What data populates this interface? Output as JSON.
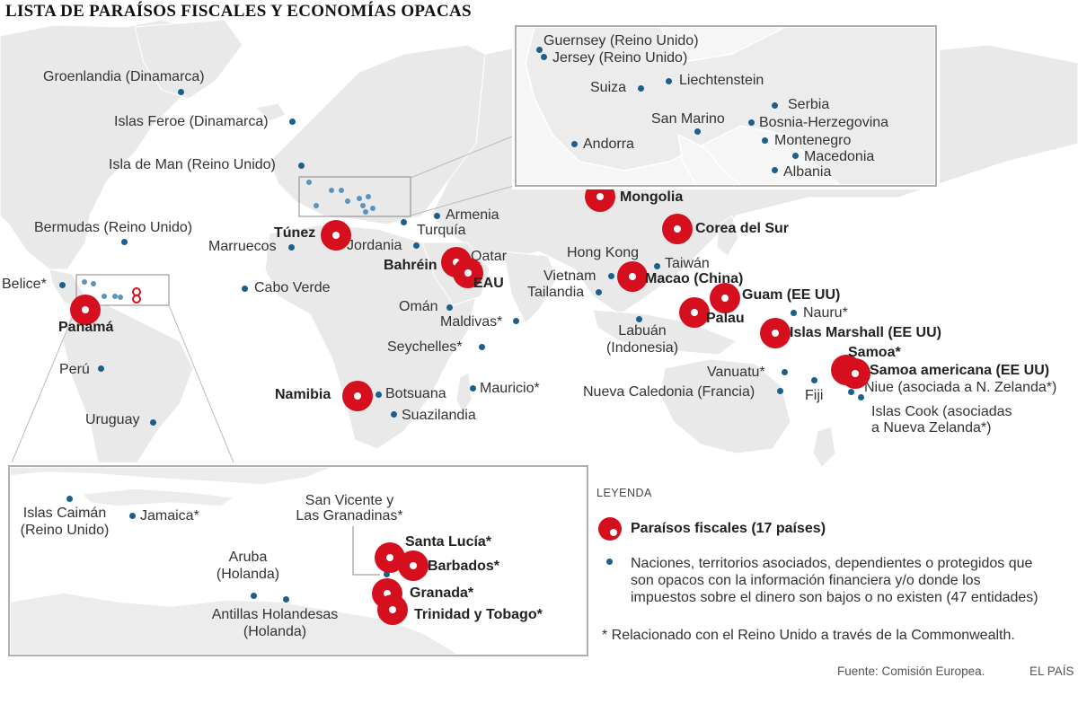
{
  "title": "LISTA DE PARAÍSOS FISCALES Y ECONOMÍAS OPACAS",
  "world_labels": {
    "groenlandia": "Groenlandia (Dinamarca)",
    "islas_feroe": "Islas Feroe (Dinamarca)",
    "isla_de_man": "Isla de Man (Reino Unido)",
    "bermudas": "Bermudas (Reino Unido)",
    "marruecos": "Marruecos",
    "jordania": "Jordania",
    "turquia": "Turquía",
    "armenia": "Armenia",
    "qatar": "Qatar",
    "cabo_verde": "Cabo Verde",
    "belice": "Belice*",
    "oman": "Omán",
    "maldivas": "Maldivas*",
    "seychelles": "Seychelles*",
    "peru": "Perú",
    "uruguay": "Uruguay",
    "botsuana": "Botsuana",
    "suazilandia": "Suazilandia",
    "mauricio": "Mauricio*",
    "hong_kong": "Hong Kong",
    "taiwan": "Taiwán",
    "vietnam": "Vietnam",
    "tailandia": "Tailandia",
    "labuan_1": "Labuán",
    "labuan_2": "(Indonesia)",
    "nauru": "Nauru*",
    "vanuatu": "Vanuatu*",
    "nueva_caledonia": "Nueva Caledonia (Francia)",
    "fiji": "Fiji",
    "niue": "Niue (asociada a N. Zelanda*)",
    "islas_cook_1": "Islas Cook (asociadas",
    "islas_cook_2": "a Nueva Zelanda*)"
  },
  "havens": {
    "panama": "Panamá",
    "tunez": "Túnez",
    "bahrein": "Bahréin",
    "eau": "EAU",
    "namibia": "Namibia",
    "mongolia": "Mongolia",
    "corea": "Corea del Sur",
    "macao": "Macao (China)",
    "guam": "Guam (EE UU)",
    "palau": "Palau",
    "marshall": "Islas Marshall (EE UU)",
    "samoa": "Samoa*",
    "samoa_americana": "Samoa americana (EE UU)"
  },
  "europe_inset": {
    "guernsey": "Guernsey (Reino Unido)",
    "jersey": "Jersey (Reino Unido)",
    "suiza": "Suiza",
    "liechtenstein": "Liechtenstein",
    "serbia": "Serbia",
    "san_marino": "San Marino",
    "bosnia": "Bosnia-Herzegovina",
    "andorra": "Andorra",
    "montenegro": "Montenegro",
    "macedonia": "Macedonia",
    "albania": "Albania"
  },
  "caribbean_inset": {
    "islas_caiman_1": "Islas Caimán",
    "islas_caiman_2": "(Reino Unido)",
    "jamaica": "Jamaica*",
    "san_vicente_1": "San Vicente y",
    "san_vicente_2": "Las Granadinas*",
    "santa_lucia": "Santa Lucía*",
    "barbados": "Barbados*",
    "granada": "Granada*",
    "trinidad": "Trinidad y Tobago*",
    "aruba_1": "Aruba",
    "aruba_2": "(Holanda)",
    "antillas_1": "Antillas Holandesas",
    "antillas_2": "(Holanda)"
  },
  "legend": {
    "title": "LEYENDA",
    "havens_label": "Paraísos fiscales (17 países)",
    "opaque_line1": "Naciones, territorios asociados, dependientes o protegidos que",
    "opaque_line2": "son opacos con la información financiera y/o donde los",
    "opaque_line3": "impuestos sobre el dinero son bajos o no existen (47 entidades)",
    "note": "* Relacionado con el Reino Unido a través de la Commonwealth."
  },
  "footer": {
    "source": "Fuente: Comisión Europea.",
    "publisher": "EL PAÍS"
  },
  "colors": {
    "haven_ring": "#d60f1e",
    "opaque_dot": "#1b5f8c",
    "land": "#e8e8e8",
    "ocean": "#ffffff"
  }
}
